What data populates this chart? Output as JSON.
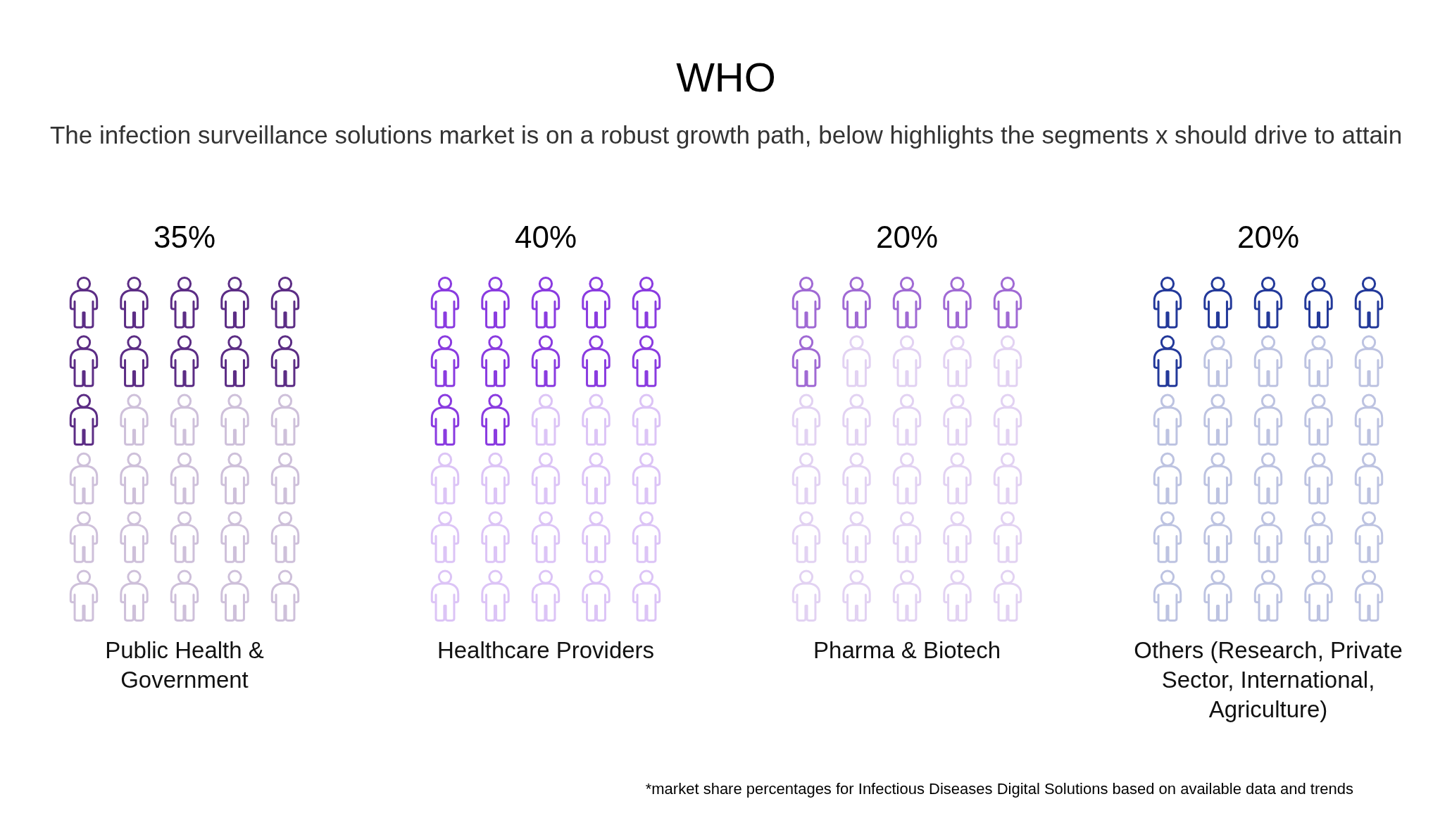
{
  "chart_data": {
    "type": "other",
    "title": "WHO",
    "subtitle": "The infection surveillance solutions market is on a robust growth path, below highlights the segments x should drive to attain",
    "categories": [
      "Public Health & Government",
      "Healthcare Providers",
      "Pharma & Biotech",
      "Others (Research, Private Sector, International, Agriculture)"
    ],
    "values": [
      35,
      40,
      20,
      20
    ],
    "value_labels": [
      "35%",
      "40%",
      "20%",
      "20%"
    ],
    "colors": [
      "#5c2d85",
      "#8a3be0",
      "#a06ad4",
      "#23399a"
    ],
    "annotations": [
      "*market share percentages for Infectious Diseases Digital Solutions based on available data and trends"
    ]
  }
}
